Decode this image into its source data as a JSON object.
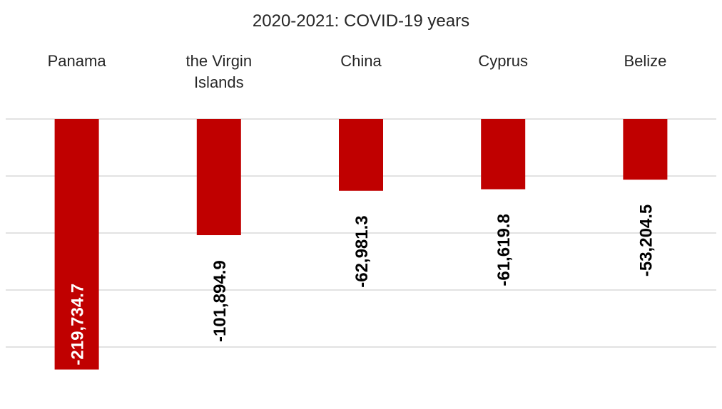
{
  "chart_data": {
    "type": "bar",
    "title": "2020-2021: COVID-19 years",
    "categories": [
      "Panama",
      "the Virgin Islands",
      "China",
      "Cyprus",
      "Belize"
    ],
    "values": [
      -219734.7,
      -101894.9,
      -62981.3,
      -61619.8,
      -53204.5
    ],
    "value_labels": [
      "-219,734.7",
      "-101,894.9",
      "-62,981.3",
      "-61,619.8",
      "-53,204.5"
    ],
    "xlabel": "",
    "ylabel": "",
    "ylim": [
      -250000,
      0
    ],
    "grid": true,
    "legend": "none",
    "bar_color": "#C00000",
    "inside_label_color": "#ffffff",
    "outside_label_color": "#000000"
  }
}
